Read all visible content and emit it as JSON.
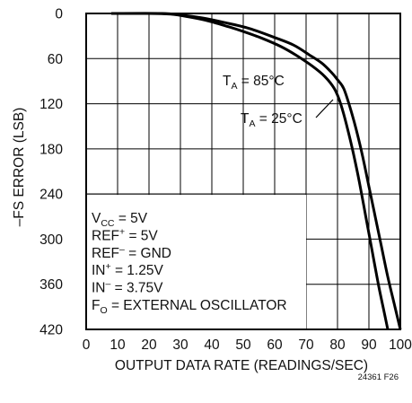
{
  "chart_data": {
    "type": "line",
    "xlabel": "OUTPUT DATA RATE (READINGS/SEC)",
    "ylabel": "–FS ERROR (LSB)",
    "xlim": [
      0,
      100
    ],
    "ylim": [
      0,
      420
    ],
    "y_inverted": true,
    "grid": true,
    "x_ticks": [
      "0",
      "10",
      "20",
      "30",
      "40",
      "50",
      "60",
      "70",
      "80",
      "90",
      "100"
    ],
    "y_ticks": [
      "0",
      "60",
      "120",
      "180",
      "240",
      "300",
      "360",
      "420"
    ],
    "series": [
      {
        "name": "TA = 85°C",
        "points": [
          [
            8,
            0
          ],
          [
            20,
            0
          ],
          [
            27,
            1
          ],
          [
            32,
            4
          ],
          [
            38,
            9
          ],
          [
            44,
            16
          ],
          [
            50,
            24
          ],
          [
            56,
            33
          ],
          [
            62,
            44
          ],
          [
            67,
            56
          ],
          [
            72,
            70
          ],
          [
            76,
            84
          ],
          [
            79,
            100
          ],
          [
            81,
            120
          ],
          [
            83,
            150
          ],
          [
            85,
            185
          ],
          [
            87,
            225
          ],
          [
            89,
            270
          ],
          [
            91,
            315
          ],
          [
            93,
            360
          ],
          [
            95,
            400
          ],
          [
            96,
            420
          ]
        ]
      },
      {
        "name": "TA = 25°C",
        "points": [
          [
            8,
            0
          ],
          [
            24,
            0
          ],
          [
            30,
            2
          ],
          [
            37,
            6
          ],
          [
            44,
            12
          ],
          [
            52,
            20
          ],
          [
            60,
            32
          ],
          [
            66,
            42
          ],
          [
            71,
            55
          ],
          [
            75,
            66
          ],
          [
            78,
            78
          ],
          [
            80,
            88
          ],
          [
            82,
            100
          ],
          [
            84,
            125
          ],
          [
            86,
            155
          ],
          [
            88,
            190
          ],
          [
            90,
            230
          ],
          [
            92,
            270
          ],
          [
            94,
            310
          ],
          [
            96,
            350
          ],
          [
            98,
            385
          ],
          [
            100,
            420
          ]
        ]
      }
    ],
    "annotations": [
      {
        "main": "T",
        "sub": "A",
        "rest": " = 85°C"
      },
      {
        "main": "T",
        "sub": "A",
        "rest": " = 25°C"
      }
    ],
    "conditions": [
      {
        "main": "V",
        "sub": "CC",
        "sup": "",
        "rest": " = 5V"
      },
      {
        "main": "REF",
        "sub": "",
        "sup": "+",
        "rest": " = 5V"
      },
      {
        "main": "REF",
        "sub": "",
        "sup": "–",
        "rest": " = GND"
      },
      {
        "main": "IN",
        "sub": "",
        "sup": "+",
        "rest": " = 1.25V"
      },
      {
        "main": "IN",
        "sub": "",
        "sup": "–",
        "rest": " = 3.75V"
      },
      {
        "main": "F",
        "sub": "O",
        "sup": "",
        "rest": " = EXTERNAL OSCILLATOR"
      }
    ],
    "figure_id": "24361 F26"
  }
}
